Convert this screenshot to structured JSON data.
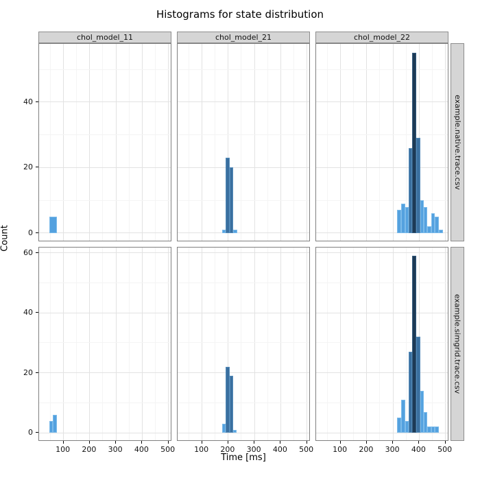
{
  "title": "Histograms for state distribution",
  "colors": {
    "bar_light": "#54a1df",
    "bar_medium": "#3a6f9f",
    "bar_dark": "#1d3a55",
    "strip_fill": "#d5d5d5",
    "panel_border": "#7f7f7f",
    "grid_major": "#e2e2e2",
    "grid_minor": "#f4f4f4"
  },
  "chart_data": {
    "type": "bar",
    "subtype": "faceted-histogram",
    "title": "Histograms for state distribution",
    "xlabel": "Time [ms]",
    "ylabel": "Count",
    "legend": "none",
    "grid": "on",
    "facet_cols": [
      "chol_model_11",
      "chol_model_21",
      "chol_model_22"
    ],
    "facet_rows": [
      "example.native.trace.csv",
      "example.simgrid.trace.csv"
    ],
    "x_ticks": [
      100,
      200,
      300,
      400,
      500
    ],
    "x_minor": [
      50,
      150,
      250,
      350,
      450
    ],
    "x_domain": [
      7,
      514
    ],
    "rows": [
      {
        "label": "example.native.trace.csv",
        "y_ticks": [
          0,
          20,
          40
        ],
        "y_minor": [
          10,
          30,
          50
        ],
        "y_domain": [
          -2.75,
          57.75
        ]
      },
      {
        "label": "example.simgrid.trace.csv",
        "y_ticks": [
          0,
          20,
          40,
          60
        ],
        "y_minor": [
          10,
          30,
          50
        ],
        "y_domain": [
          -2.94,
          61.74
        ]
      }
    ],
    "bars_format": [
      "x_start_ms",
      "x_end_ms",
      "count",
      "shade"
    ],
    "panels": [
      {
        "row": 0,
        "col": 0,
        "bars": [
          [
            45,
            75,
            5,
            "light"
          ]
        ]
      },
      {
        "row": 0,
        "col": 1,
        "bars": [
          [
            176,
            190,
            1,
            "light"
          ],
          [
            190,
            205,
            23,
            "medium"
          ],
          [
            205,
            219,
            20,
            "medium"
          ],
          [
            219,
            234,
            1,
            "light"
          ]
        ]
      },
      {
        "row": 0,
        "col": 2,
        "bars": [
          [
            316,
            331,
            7,
            "light"
          ],
          [
            331,
            346,
            9,
            "light"
          ],
          [
            346,
            360,
            8,
            "light"
          ],
          [
            360,
            374,
            26,
            "medium"
          ],
          [
            374,
            388,
            55,
            "dark"
          ],
          [
            388,
            403,
            29,
            "medium"
          ],
          [
            403,
            417,
            10,
            "light"
          ],
          [
            417,
            431,
            8,
            "light"
          ],
          [
            431,
            446,
            2,
            "light"
          ],
          [
            446,
            460,
            6,
            "light"
          ],
          [
            460,
            475,
            5,
            "light"
          ],
          [
            475,
            490,
            1,
            "light"
          ]
        ]
      },
      {
        "row": 1,
        "col": 0,
        "bars": [
          [
            45,
            60,
            4,
            "light"
          ],
          [
            60,
            75,
            6,
            "light"
          ]
        ]
      },
      {
        "row": 1,
        "col": 1,
        "bars": [
          [
            176,
            190,
            3,
            "light"
          ],
          [
            190,
            205,
            22,
            "medium"
          ],
          [
            205,
            219,
            19,
            "medium"
          ],
          [
            219,
            233,
            1,
            "light"
          ]
        ]
      },
      {
        "row": 1,
        "col": 2,
        "bars": [
          [
            316,
            331,
            5,
            "light"
          ],
          [
            331,
            346,
            11,
            "light"
          ],
          [
            346,
            360,
            4,
            "light"
          ],
          [
            360,
            374,
            27,
            "medium"
          ],
          [
            374,
            388,
            59,
            "dark"
          ],
          [
            388,
            403,
            32,
            "medium"
          ],
          [
            403,
            417,
            14,
            "light"
          ],
          [
            417,
            431,
            7,
            "light"
          ],
          [
            431,
            446,
            2,
            "light"
          ],
          [
            446,
            460,
            2,
            "light"
          ],
          [
            460,
            475,
            2,
            "light"
          ]
        ]
      }
    ]
  }
}
